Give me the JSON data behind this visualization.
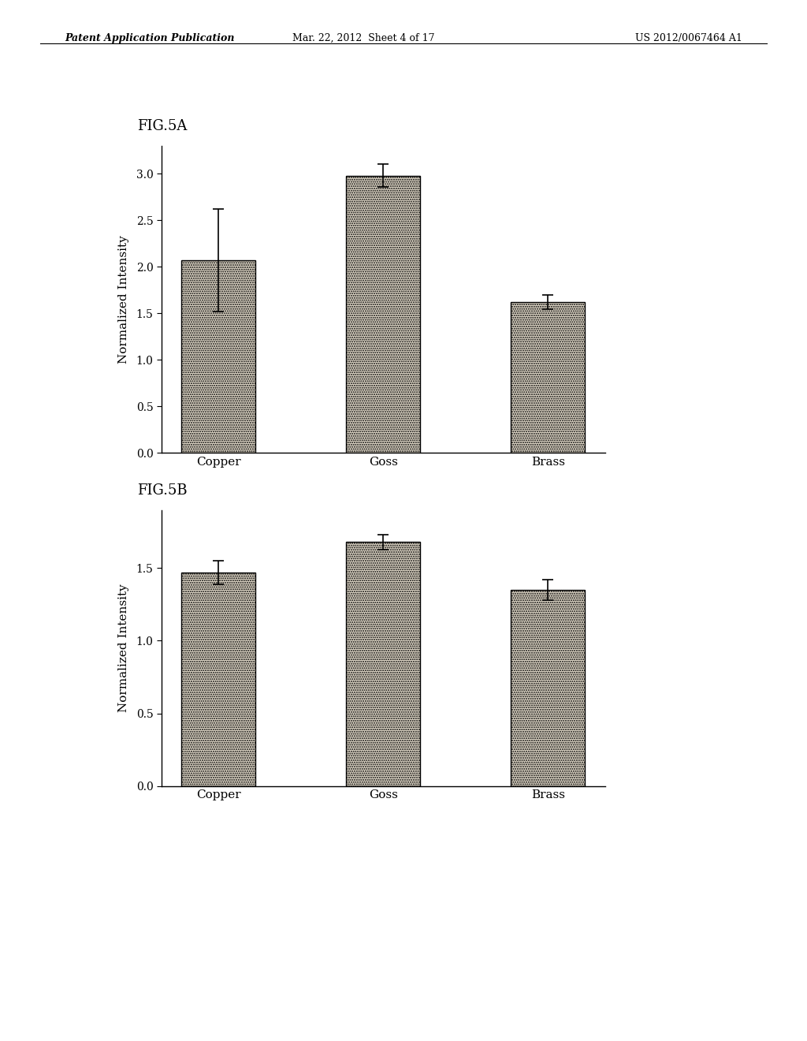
{
  "fig5a": {
    "title": "FIG.5A",
    "categories": [
      "Copper",
      "Goss",
      "Brass"
    ],
    "values": [
      2.07,
      2.98,
      1.62
    ],
    "errors": [
      0.55,
      0.12,
      0.08
    ],
    "ylabel": "Normalized Intensity",
    "ylim": [
      0.0,
      3.3
    ],
    "yticks": [
      0.0,
      0.5,
      1.0,
      1.5,
      2.0,
      2.5,
      3.0
    ]
  },
  "fig5b": {
    "title": "FIG.5B",
    "categories": [
      "Copper",
      "Goss",
      "Brass"
    ],
    "values": [
      1.47,
      1.68,
      1.35
    ],
    "errors": [
      0.08,
      0.05,
      0.07
    ],
    "ylabel": "Normalized Intensity",
    "ylim": [
      0.0,
      1.9
    ],
    "yticks": [
      0.0,
      0.5,
      1.0,
      1.5
    ]
  },
  "bar_color": "#d4ccb8",
  "bar_edge_color": "#000000",
  "bar_width": 0.45,
  "background_color": "#ffffff",
  "header_left": "Patent Application Publication",
  "header_mid": "Mar. 22, 2012  Sheet 4 of 17",
  "header_right": "US 2012/0067464 A1",
  "title_fontsize": 13,
  "label_fontsize": 11,
  "tick_fontsize": 10,
  "header_fontsize": 9,
  "cat_fontsize": 11
}
